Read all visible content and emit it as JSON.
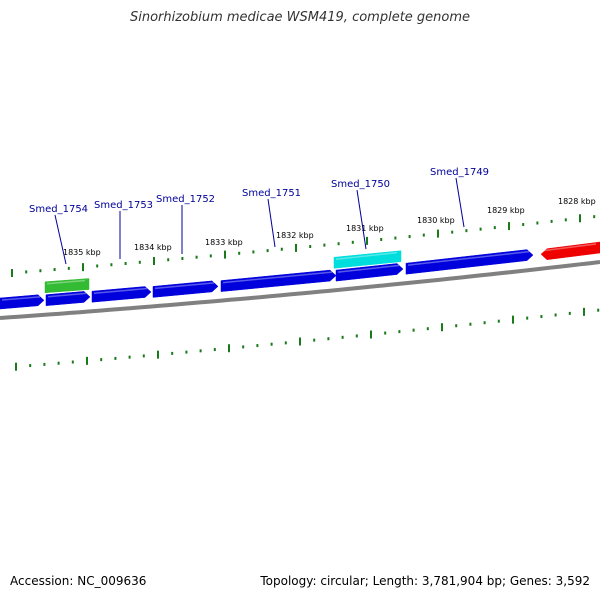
{
  "title": "Sinorhizobium medicae WSM419, complete genome",
  "footer": {
    "accession": "Accession: NC_009636",
    "summary": "Topology: circular; Length: 3,781,904 bp; Genes: 3,592"
  },
  "colors": {
    "backbone": "#808080",
    "tick": "#1a7a1a",
    "cds_forward": "#0000dd",
    "highlight_green": "#33bb33",
    "highlight_cyan": "#00dddd",
    "cds_reverse": "#ee0000",
    "gene_label": "#000099"
  },
  "kbp_ticks": [
    "1835 kbp",
    "1834 kbp",
    "1833 kbp",
    "1832 kbp",
    "1831 kbp",
    "1830 kbp",
    "1829 kbp",
    "1828 kbp"
  ],
  "gene_labels": [
    "Smed_1754",
    "Smed_1753",
    "Smed_1752",
    "Smed_1751",
    "Smed_1750",
    "Smed_1749"
  ]
}
